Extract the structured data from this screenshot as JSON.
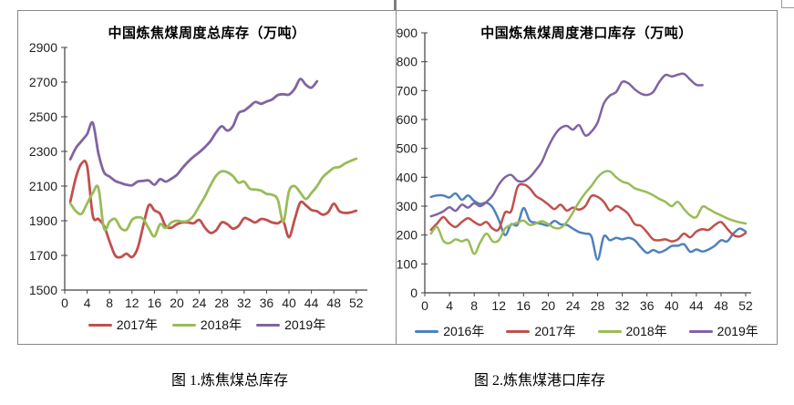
{
  "page": {
    "background": "#ffffff",
    "border_color": "#8a8a8a",
    "divider_color": "#7f7f7f"
  },
  "captions": {
    "fig1": "图 1.炼焦煤总库存",
    "fig2": "图 2.炼焦煤港口库存"
  },
  "palette": {
    "blue": "#4F81BD",
    "red": "#C0504D",
    "green": "#9BBB59",
    "purple": "#8064A2"
  },
  "chart_data": [
    {
      "type": "line",
      "title": "中国炼焦煤周度总库存（万吨）",
      "xlabel": "",
      "ylabel": "",
      "ylim": [
        1500,
        2900
      ],
      "ytick_step": 200,
      "x_ticks": [
        0,
        4,
        8,
        12,
        16,
        20,
        24,
        28,
        32,
        36,
        40,
        44,
        48,
        52
      ],
      "xlim": [
        0,
        53
      ],
      "grid": false,
      "legend_position": "bottom",
      "series": [
        {
          "name": "2017年",
          "color": "#C0504D",
          "x_start": 1,
          "values": [
            2010,
            2150,
            2230,
            2215,
            1930,
            1910,
            1870,
            1780,
            1700,
            1690,
            1710,
            1690,
            1740,
            1870,
            1990,
            1960,
            1940,
            1870,
            1860,
            1880,
            1890,
            1890,
            1885,
            1905,
            1860,
            1830,
            1845,
            1890,
            1880,
            1855,
            1870,
            1915,
            1905,
            1890,
            1910,
            1905,
            1890,
            1885,
            1895,
            1805,
            1905,
            2005,
            1990,
            1962,
            1955,
            1935,
            1950,
            1998,
            1955,
            1945,
            1948,
            1958
          ]
        },
        {
          "name": "2018年",
          "color": "#9BBB59",
          "x_start": 1,
          "values": [
            2000,
            1955,
            1940,
            2000,
            2060,
            2090,
            1855,
            1895,
            1910,
            1858,
            1848,
            1905,
            1920,
            1910,
            1855,
            1810,
            1880,
            1858,
            1890,
            1900,
            1895,
            1900,
            1930,
            1985,
            2040,
            2105,
            2160,
            2185,
            2180,
            2158,
            2120,
            2126,
            2085,
            2080,
            2074,
            2055,
            2050,
            2021,
            1895,
            2070,
            2100,
            2063,
            2026,
            2060,
            2100,
            2150,
            2180,
            2205,
            2210,
            2230,
            2245,
            2258
          ]
        },
        {
          "name": "2019年",
          "color": "#8064A2",
          "x_start": 1,
          "values": [
            2255,
            2320,
            2360,
            2400,
            2465,
            2290,
            2180,
            2155,
            2130,
            2118,
            2108,
            2105,
            2126,
            2130,
            2132,
            2108,
            2140,
            2126,
            2142,
            2165,
            2205,
            2240,
            2270,
            2295,
            2325,
            2360,
            2410,
            2445,
            2420,
            2445,
            2520,
            2535,
            2560,
            2585,
            2575,
            2588,
            2600,
            2625,
            2630,
            2628,
            2660,
            2718,
            2685,
            2668,
            2705
          ]
        }
      ]
    },
    {
      "type": "line",
      "title": "中国炼焦煤周度港口库存（万吨）",
      "xlabel": "",
      "ylabel": "",
      "ylim": [
        0,
        900
      ],
      "ytick_step": 100,
      "x_ticks": [
        0,
        4,
        8,
        12,
        16,
        20,
        24,
        28,
        32,
        36,
        40,
        44,
        48,
        52
      ],
      "xlim": [
        0,
        53
      ],
      "grid": false,
      "legend_position": "bottom",
      "series": [
        {
          "name": "2016年",
          "color": "#4F81BD",
          "x_start": 1,
          "values": [
            332,
            337,
            337,
            330,
            344,
            322,
            337,
            318,
            308,
            312,
            295,
            252,
            200,
            237,
            235,
            293,
            250,
            243,
            238,
            233,
            249,
            237,
            235,
            222,
            210,
            205,
            195,
            115,
            195,
            182,
            190,
            185,
            190,
            182,
            158,
            138,
            148,
            140,
            148,
            162,
            163,
            168,
            142,
            150,
            143,
            150,
            163,
            182,
            178,
            205,
            222,
            212
          ]
        },
        {
          "name": "2017年",
          "color": "#C0504D",
          "x_start": 1,
          "values": [
            218,
            240,
            262,
            240,
            228,
            245,
            258,
            245,
            235,
            245,
            222,
            220,
            278,
            283,
            365,
            375,
            362,
            335,
            322,
            306,
            290,
            305,
            285,
            295,
            288,
            300,
            335,
            332,
            315,
            285,
            300,
            290,
            272,
            238,
            232,
            210,
            185,
            182,
            185,
            178,
            185,
            205,
            192,
            212,
            220,
            218,
            235,
            245,
            222,
            200,
            195,
            207
          ]
        },
        {
          "name": "2018年",
          "color": "#9BBB59",
          "x_start": 1,
          "values": [
            205,
            228,
            180,
            172,
            185,
            178,
            182,
            135,
            175,
            205,
            178,
            182,
            222,
            235,
            243,
            250,
            235,
            240,
            248,
            238,
            225,
            225,
            245,
            278,
            315,
            345,
            370,
            400,
            418,
            420,
            400,
            385,
            378,
            362,
            355,
            348,
            338,
            325,
            315,
            300,
            315,
            290,
            268,
            262,
            298,
            290,
            278,
            268,
            258,
            250,
            244,
            240
          ]
        },
        {
          "name": "2019年",
          "color": "#8064A2",
          "x_start": 1,
          "values": [
            265,
            272,
            282,
            296,
            284,
            305,
            295,
            310,
            300,
            315,
            337,
            375,
            400,
            408,
            388,
            386,
            400,
            425,
            455,
            505,
            545,
            570,
            578,
            565,
            580,
            545,
            558,
            590,
            655,
            683,
            695,
            730,
            725,
            705,
            690,
            685,
            695,
            730,
            754,
            749,
            755,
            758,
            738,
            720,
            719
          ]
        }
      ]
    }
  ]
}
